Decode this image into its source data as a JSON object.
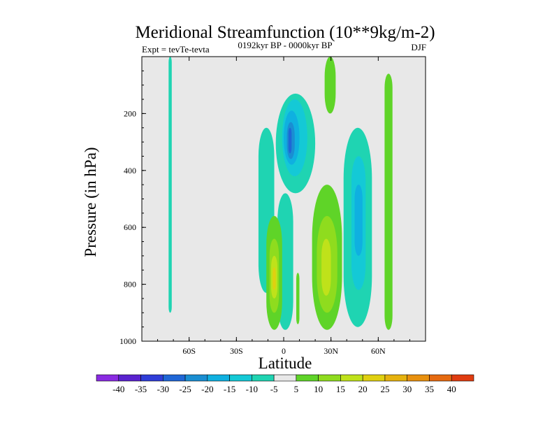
{
  "chart_data": {
    "type": "heatmap",
    "title": "Meridional Streamfunction (10**9kg/m-2)",
    "left_subtitle": "Expt = tevTe-tevta",
    "center_subtitle": "0192kyr BP - 0000kyr BP",
    "right_subtitle": "DJF",
    "xlabel": "Latitude",
    "ylabel": "Pressure (in hPa)",
    "xlim": [
      -90,
      90
    ],
    "ylim": [
      1000,
      0
    ],
    "x_ticks": [
      {
        "value": -60,
        "label": "60S"
      },
      {
        "value": -30,
        "label": "30S"
      },
      {
        "value": 0,
        "label": "0"
      },
      {
        "value": 30,
        "label": "30N"
      },
      {
        "value": 60,
        "label": "60N"
      }
    ],
    "y_ticks": [
      {
        "value": 200,
        "label": "200"
      },
      {
        "value": 400,
        "label": "400"
      },
      {
        "value": 600,
        "label": "600"
      },
      {
        "value": 800,
        "label": "800"
      },
      {
        "value": 1000,
        "label": "1000"
      }
    ],
    "colorbar_labels": [
      "-40",
      "-35",
      "-30",
      "-25",
      "-20",
      "-15",
      "-10",
      "-5",
      "5",
      "10",
      "15",
      "20",
      "25",
      "30",
      "35",
      "40"
    ],
    "colorbar_colors": [
      "#8a2be2",
      "#5a22cf",
      "#2f3dd8",
      "#1f66d6",
      "#1a8ed2",
      "#0fb0e0",
      "#14c9d6",
      "#1fd4b2",
      "#e8e8e8",
      "#5fd428",
      "#8fdc1e",
      "#bfe21a",
      "#e0d010",
      "#e6b20e",
      "#e8900e",
      "#e66a10",
      "#e03c10"
    ],
    "background_color": "#e8e8e8",
    "contour_regions": [
      {
        "name": "narrow-band-75s",
        "level": -5,
        "lat_min": -73,
        "lat_max": -71,
        "p_top": 0,
        "p_bottom": 900
      },
      {
        "name": "band-12s",
        "level": -5,
        "lat_min": -16,
        "lat_max": -6,
        "p_top": 250,
        "p_bottom": 830
      },
      {
        "name": "cell-5s-north-main",
        "level": -5,
        "lat_min": -5,
        "lat_max": 20,
        "p_top": 130,
        "p_bottom": 480
      },
      {
        "name": "cell-5s-main-lower",
        "level": -5,
        "lat_min": -4,
        "lat_max": 6,
        "p_top": 480,
        "p_bottom": 960
      },
      {
        "name": "cell-5s-10",
        "level": -10,
        "lat_min": -1,
        "lat_max": 15,
        "p_top": 150,
        "p_bottom": 420
      },
      {
        "name": "cell-5s-15",
        "level": -15,
        "lat_min": 0,
        "lat_max": 10,
        "p_top": 190,
        "p_bottom": 380
      },
      {
        "name": "cell-5s-20",
        "level": -20,
        "lat_min": 2,
        "lat_max": 7,
        "p_top": 230,
        "p_bottom": 360
      },
      {
        "name": "cell-5s-25",
        "level": -25,
        "lat_min": 3,
        "lat_max": 5,
        "p_top": 250,
        "p_bottom": 340
      },
      {
        "name": "band-45n",
        "level": -5,
        "lat_min": 38,
        "lat_max": 56,
        "p_top": 250,
        "p_bottom": 950
      },
      {
        "name": "band-45n-10",
        "level": -10,
        "lat_min": 43,
        "lat_max": 52,
        "p_top": 350,
        "p_bottom": 820
      },
      {
        "name": "band-45n-15",
        "level": -15,
        "lat_min": 45,
        "lat_max": 50,
        "p_top": 450,
        "p_bottom": 700
      },
      {
        "name": "positive-top-center",
        "level": 5,
        "lat_min": 26,
        "lat_max": 33,
        "p_top": 0,
        "p_bottom": 200
      },
      {
        "name": "positive-south",
        "level": 5,
        "lat_min": -11,
        "lat_max": -1,
        "p_top": 560,
        "p_bottom": 960
      },
      {
        "name": "positive-south-10",
        "level": 10,
        "lat_min": -9,
        "lat_max": -3,
        "p_top": 640,
        "p_bottom": 900
      },
      {
        "name": "positive-south-15",
        "level": 15,
        "lat_min": -8,
        "lat_max": -4,
        "p_top": 700,
        "p_bottom": 850
      },
      {
        "name": "positive-south-20",
        "level": 20,
        "lat_min": -7,
        "lat_max": -5,
        "p_top": 740,
        "p_bottom": 820
      },
      {
        "name": "positive-north-eq",
        "level": 5,
        "lat_min": 8,
        "lat_max": 10,
        "p_top": 760,
        "p_bottom": 940
      },
      {
        "name": "positive-25n",
        "level": 5,
        "lat_min": 18,
        "lat_max": 37,
        "p_top": 450,
        "p_bottom": 960
      },
      {
        "name": "positive-25n-10",
        "level": 10,
        "lat_min": 21,
        "lat_max": 34,
        "p_top": 560,
        "p_bottom": 900
      },
      {
        "name": "positive-25n-15",
        "level": 15,
        "lat_min": 24,
        "lat_max": 30,
        "p_top": 640,
        "p_bottom": 840
      },
      {
        "name": "positive-band-67n",
        "level": 5,
        "lat_min": 64,
        "lat_max": 69,
        "p_top": 60,
        "p_bottom": 960
      }
    ]
  }
}
